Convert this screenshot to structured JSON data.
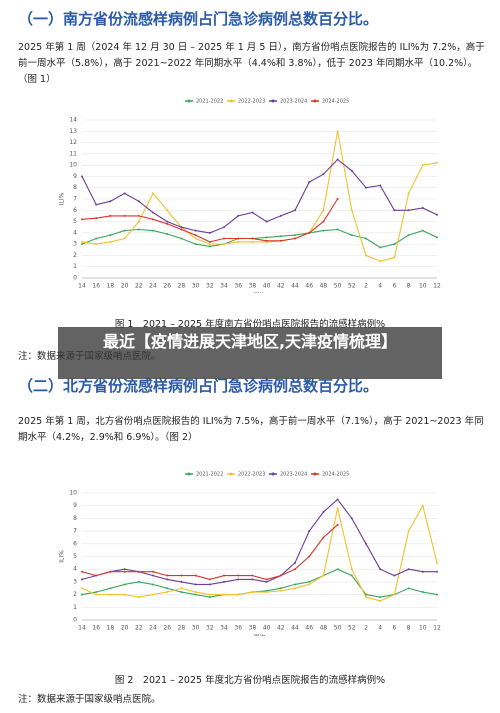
{
  "sections": [
    {
      "heading": "（一）南方省份流感样病例占门急诊病例总数百分比。",
      "paragraph": "2025 年第 1 周（2024 年 12 月 30 日 – 2025 年 1 月 5 日），南方省份哨点医院报告的 ILI%为 7.2%，高于前一周水平（5.8%），高于 2021~2022 年同期水平（4.4%和 3.8%），低于 2023 年同期水平（10.2%）。（图 1）",
      "caption": "图 1　2021 – 2025 年度南方省份哨点医院报告的流感样病例%",
      "note": "注：数据来源于国家级哨点医院。"
    },
    {
      "heading": "（二）北方省份流感样病例占门急诊病例总数百分比。",
      "paragraph": "2025 年第 1 周，北方省份哨点医院报告的 ILI%为 7.5%，高于前一周水平（7.1%），高于 2021~2023 年同期水平（4.2%，2.9%和 6.9%）。（图 2）",
      "caption": "图 2　2021 – 2025 年度北方省份哨点医院报告的流感样病例%",
      "note": "注：数据来源于国家级哨点医院。"
    }
  ],
  "banner": "最近【疫情进展天津地区,天津疫情梳理】",
  "chart_data": [
    {
      "type": "line",
      "xlabel": "周次",
      "ylabel": "ILI%",
      "categories": [
        "14",
        "16",
        "18",
        "20",
        "22",
        "24",
        "26",
        "28",
        "30",
        "32",
        "34",
        "36",
        "38",
        "40",
        "42",
        "44",
        "46",
        "48",
        "50",
        "52",
        "2",
        "4",
        "6",
        "8",
        "10",
        "12"
      ],
      "ylim": [
        0,
        14
      ],
      "yticks": [
        0,
        1,
        2,
        3,
        4,
        5,
        6,
        7,
        8,
        9,
        10,
        11,
        12,
        13,
        14
      ],
      "series": [
        {
          "name": "2021-2022",
          "color": "#3aa65a",
          "values": [
            3.0,
            3.5,
            3.8,
            4.2,
            4.3,
            4.2,
            3.9,
            3.5,
            3.0,
            2.8,
            3.0,
            3.5,
            3.5,
            3.6,
            3.7,
            3.8,
            4.0,
            4.2,
            4.3,
            3.8,
            3.5,
            2.7,
            3.0,
            3.8,
            4.2,
            3.6
          ]
        },
        {
          "name": "2022-2023",
          "color": "#f2c12e",
          "values": [
            3.2,
            3.0,
            3.2,
            3.5,
            5.0,
            7.5,
            6.0,
            4.5,
            3.5,
            3.0,
            3.0,
            3.2,
            3.2,
            3.2,
            3.3,
            3.5,
            4.0,
            6.0,
            13.0,
            6.0,
            2.0,
            1.5,
            1.8,
            7.5,
            10.0,
            10.2
          ]
        },
        {
          "name": "2023-2024",
          "color": "#6a3d9a",
          "values": [
            9.0,
            6.5,
            6.8,
            7.5,
            6.8,
            5.8,
            5.0,
            4.5,
            4.2,
            4.0,
            4.5,
            5.5,
            5.8,
            5.0,
            5.5,
            6.0,
            8.5,
            9.2,
            10.5,
            9.5,
            8.0,
            8.2,
            6.0,
            6.0,
            6.2,
            5.6
          ]
        },
        {
          "name": "2024-2025",
          "color": "#d9342b",
          "values": [
            5.2,
            5.3,
            5.5,
            5.5,
            5.5,
            5.2,
            4.8,
            4.3,
            3.8,
            3.2,
            3.5,
            3.5,
            3.5,
            3.3,
            3.3,
            3.5,
            4.0,
            5.0,
            7.0,
            null,
            null,
            null,
            null,
            null,
            null,
            null
          ]
        }
      ]
    },
    {
      "type": "line",
      "xlabel": "周次",
      "ylabel": "ILI%",
      "categories": [
        "14",
        "16",
        "18",
        "20",
        "22",
        "24",
        "26",
        "28",
        "30",
        "32",
        "34",
        "36",
        "38",
        "40",
        "42",
        "44",
        "46",
        "48",
        "50",
        "52",
        "2",
        "4",
        "6",
        "8",
        "10",
        "12"
      ],
      "ylim": [
        0,
        10
      ],
      "yticks": [
        0,
        1,
        2,
        3,
        4,
        5,
        6,
        7,
        8,
        9,
        10
      ],
      "series": [
        {
          "name": "2021-2022",
          "color": "#3aa65a",
          "values": [
            2.0,
            2.2,
            2.5,
            2.8,
            3.0,
            2.8,
            2.5,
            2.2,
            2.0,
            1.8,
            2.0,
            2.0,
            2.2,
            2.3,
            2.5,
            2.8,
            3.0,
            3.5,
            4.0,
            3.5,
            2.0,
            1.8,
            2.0,
            2.5,
            2.2,
            2.0
          ]
        },
        {
          "name": "2022-2023",
          "color": "#f2c12e",
          "values": [
            2.5,
            2.0,
            2.0,
            2.0,
            1.8,
            2.0,
            2.2,
            2.5,
            2.2,
            2.0,
            2.0,
            2.0,
            2.2,
            2.2,
            2.3,
            2.5,
            2.8,
            3.5,
            8.8,
            4.0,
            1.8,
            1.5,
            2.0,
            7.0,
            9.0,
            4.5
          ]
        },
        {
          "name": "2023-2024",
          "color": "#6a3d9a",
          "values": [
            3.2,
            3.5,
            3.8,
            4.0,
            3.8,
            3.5,
            3.2,
            3.0,
            2.8,
            2.8,
            3.0,
            3.2,
            3.2,
            3.0,
            3.5,
            4.5,
            7.0,
            8.5,
            9.5,
            8.0,
            6.0,
            4.0,
            3.5,
            4.0,
            3.8,
            3.8
          ]
        },
        {
          "name": "2024-2025",
          "color": "#d9342b",
          "values": [
            3.8,
            3.5,
            3.8,
            3.8,
            3.8,
            3.8,
            3.5,
            3.5,
            3.5,
            3.2,
            3.5,
            3.5,
            3.5,
            3.2,
            3.5,
            4.0,
            5.0,
            6.5,
            7.5,
            null,
            null,
            null,
            null,
            null,
            null,
            null
          ]
        }
      ]
    }
  ]
}
